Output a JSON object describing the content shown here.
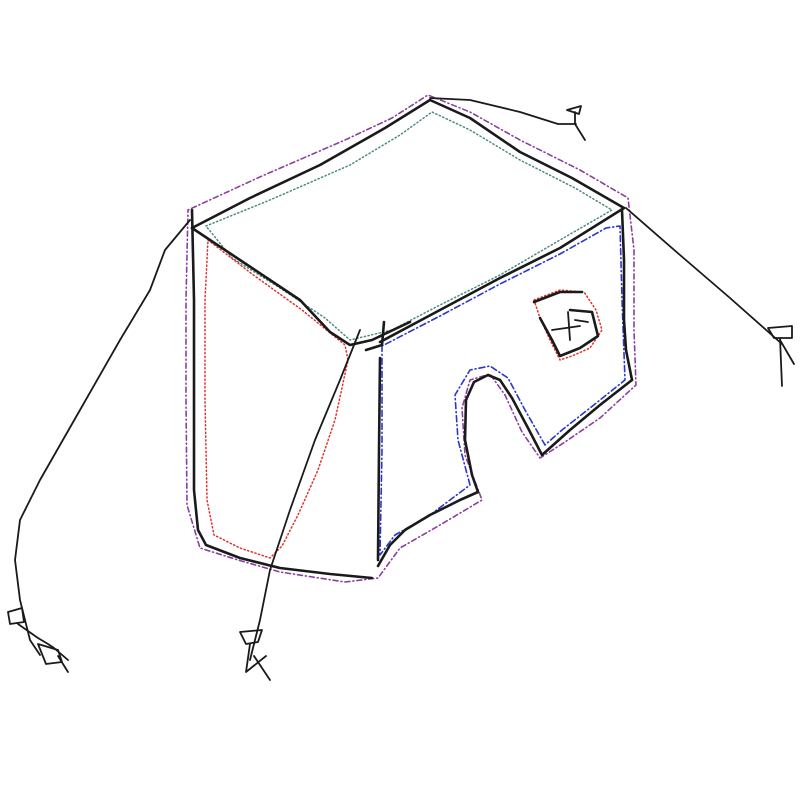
{
  "canvas": {
    "background": "#ffffff"
  },
  "colors": {
    "ink": "#1a1a1a",
    "outline_purple": "#8a3fa0",
    "top_face_teal": "#4d8a84",
    "left_face_red": "#e0302a",
    "front_face_blue": "#2a37c8"
  },
  "icons": {
    "pin_markers": [
      "pin-marker-icon",
      "pin-marker-icon",
      "pin-marker-icon",
      "pin-marker-icon"
    ]
  }
}
